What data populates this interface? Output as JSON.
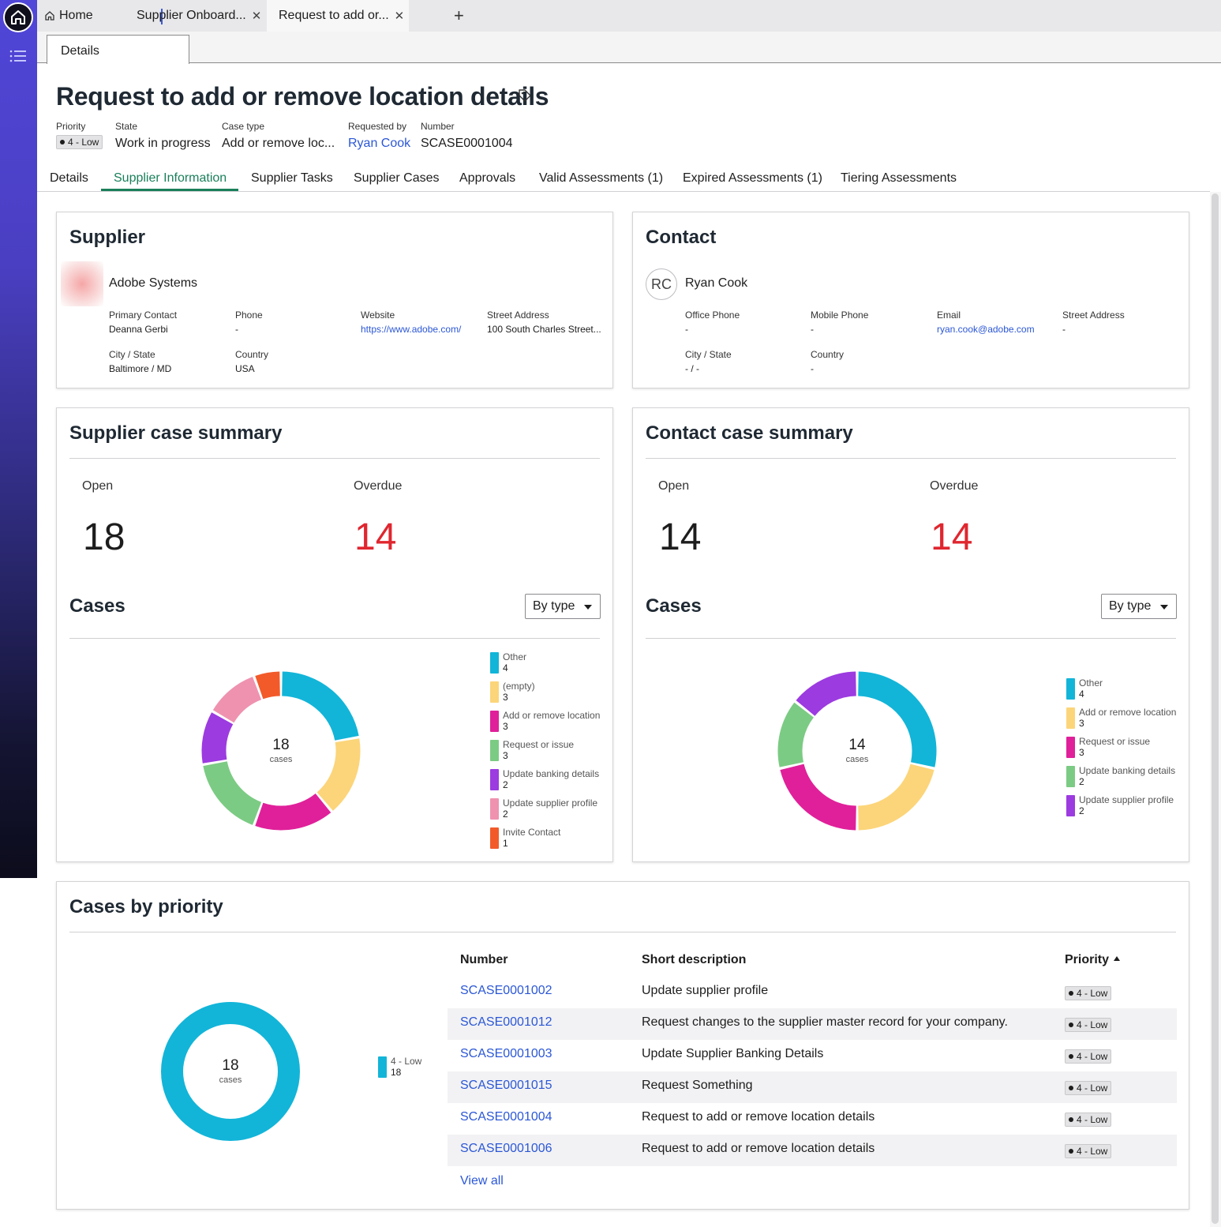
{
  "browser_tabs": {
    "home": "Home",
    "tab1": "Supplier Onboard...",
    "tab2": "Request to add or..."
  },
  "subtab": "Details",
  "header": {
    "title": "Request to add or remove location details",
    "priority_label": "Priority",
    "priority_value": "4 - Low",
    "state_label": "State",
    "state_value": "Work in progress",
    "case_type_label": "Case type",
    "case_type_value": "Add or remove loc...",
    "requested_by_label": "Requested by",
    "requested_by_value": "Ryan Cook",
    "number_label": "Number",
    "number_value": "SCASE0001004"
  },
  "content_tabs": [
    "Details",
    "Supplier Information",
    "Supplier Tasks",
    "Supplier Cases",
    "Approvals",
    "Valid Assessments (1)",
    "Expired Assessments (1)",
    "Tiering Assessments"
  ],
  "active_tab": "Supplier Information",
  "supplier": {
    "title": "Supplier",
    "name": "Adobe Systems",
    "fields": [
      {
        "label": "Primary Contact",
        "value": "Deanna Gerbi"
      },
      {
        "label": "Phone",
        "value": "-"
      },
      {
        "label": "Website",
        "value": "https://www.adobe.com/"
      },
      {
        "label": "Street Address",
        "value": "100 South Charles Street..."
      },
      {
        "label": "City / State",
        "value": "Baltimore / MD"
      },
      {
        "label": "Country",
        "value": "USA"
      }
    ]
  },
  "contact": {
    "title": "Contact",
    "initials": "RC",
    "name": "Ryan Cook",
    "fields": [
      {
        "label": "Office Phone",
        "value": "-"
      },
      {
        "label": "Mobile Phone",
        "value": "-"
      },
      {
        "label": "Email",
        "value": "ryan.cook@adobe.com"
      },
      {
        "label": "Street Address",
        "value": "-"
      },
      {
        "label": "City / State",
        "value": "- / -"
      },
      {
        "label": "Country",
        "value": "-"
      }
    ]
  },
  "supplier_summary": {
    "title": "Supplier case summary",
    "open_label": "Open",
    "open_value": "18",
    "overdue_label": "Overdue",
    "overdue_value": "14",
    "cases_title": "Cases",
    "select_value": "By type",
    "center_value": "18",
    "center_label": "cases"
  },
  "contact_summary": {
    "title": "Contact case summary",
    "open_label": "Open",
    "open_value": "14",
    "overdue_label": "Overdue",
    "overdue_value": "14",
    "cases_title": "Cases",
    "select_value": "By type",
    "center_value": "14",
    "center_label": "cases"
  },
  "priority_section": {
    "title": "Cases by priority",
    "center_value": "18",
    "center_label": "cases",
    "legend": [
      {
        "label": "4 - Low",
        "value": "18",
        "color": "#12b5d8"
      }
    ],
    "columns": {
      "number": "Number",
      "short_description": "Short description",
      "priority": "Priority"
    },
    "rows": [
      {
        "number": "SCASE0001002",
        "description": "Update supplier profile",
        "priority": "4 - Low"
      },
      {
        "number": "SCASE0001012",
        "description": "Request changes to the supplier master record for your company.",
        "priority": "4 - Low"
      },
      {
        "number": "SCASE0001003",
        "description": "Update Supplier Banking Details",
        "priority": "4 - Low"
      },
      {
        "number": "SCASE0001015",
        "description": "Request Something",
        "priority": "4 - Low"
      },
      {
        "number": "SCASE0001004",
        "description": "Request to add or remove location details",
        "priority": "4 - Low"
      },
      {
        "number": "SCASE0001006",
        "description": "Request to add or remove location details",
        "priority": "4 - Low"
      }
    ],
    "view_all": "View all"
  },
  "chart_data": [
    {
      "type": "pie",
      "categories": [
        "Other",
        "(empty)",
        "Add or remove location",
        "Request or issue",
        "Update banking details",
        "Update supplier profile",
        "Invite Contact"
      ],
      "values": [
        4,
        3,
        3,
        3,
        2,
        2,
        1
      ],
      "colors": [
        "#12b5d8",
        "#fcd57a",
        "#e0209a",
        "#7ccb84",
        "#9c3be0",
        "#ef92b0",
        "#f25a2a"
      ],
      "title": "Cases"
    },
    {
      "type": "pie",
      "categories": [
        "Other",
        "Add or remove location",
        "Request or issue",
        "Update banking details",
        "Update supplier profile"
      ],
      "values": [
        4,
        3,
        3,
        2,
        2
      ],
      "colors": [
        "#12b5d8",
        "#fcd57a",
        "#e0209a",
        "#7ccb84",
        "#9c3be0"
      ],
      "title": "Cases"
    },
    {
      "type": "pie",
      "categories": [
        "4 - Low"
      ],
      "values": [
        18
      ],
      "colors": [
        "#12b5d8"
      ],
      "title": "Cases by priority"
    }
  ]
}
